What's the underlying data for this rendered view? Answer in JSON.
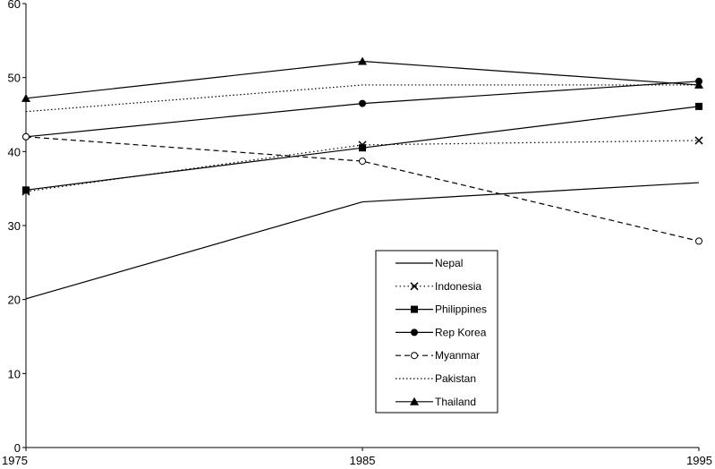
{
  "chart_data": {
    "type": "line",
    "title": "",
    "xlabel": "",
    "ylabel": "",
    "x": [
      1975,
      1985,
      1995
    ],
    "x_tick_labels": [
      "1975",
      "1985",
      "1995"
    ],
    "ylim": [
      0,
      60
    ],
    "y_ticks": [
      0,
      10,
      20,
      30,
      40,
      50,
      60
    ],
    "y_tick_labels": [
      "0",
      "10",
      "20",
      "30",
      "40",
      "50",
      "60"
    ],
    "grid": false,
    "legend_position": "center-right",
    "series": [
      {
        "name": "Nepal",
        "values": [
          20.1,
          33.2,
          35.8
        ],
        "style": "solid",
        "marker": "none"
      },
      {
        "name": "Indonesia",
        "values": [
          34.6,
          40.9,
          41.5
        ],
        "style": "dotted",
        "marker": "x"
      },
      {
        "name": "Philippines",
        "values": [
          34.8,
          40.5,
          46.1
        ],
        "style": "solid",
        "marker": "square"
      },
      {
        "name": "Rep Korea",
        "values": [
          42.0,
          46.5,
          49.5
        ],
        "style": "solid",
        "marker": "circle"
      },
      {
        "name": "Myanmar",
        "values": [
          42.0,
          38.7,
          27.9
        ],
        "style": "dashed",
        "marker": "open-circle"
      },
      {
        "name": "Pakistan",
        "values": [
          45.4,
          49.0,
          49.0
        ],
        "style": "dashdot",
        "marker": "none"
      },
      {
        "name": "Thailand",
        "values": [
          47.2,
          52.2,
          49.0
        ],
        "style": "solid",
        "marker": "triangle"
      }
    ]
  }
}
